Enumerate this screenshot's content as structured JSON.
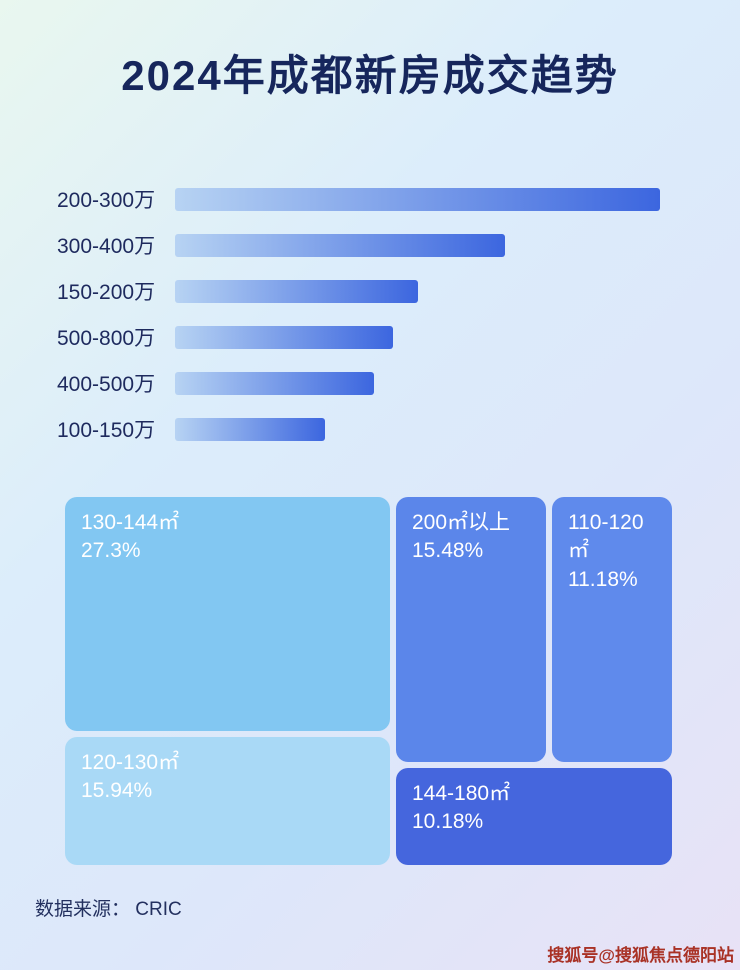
{
  "title": "2024年成都新房成交趋势",
  "source": "数据来源： CRIC",
  "watermark": "搜狐号@搜狐焦点德阳站",
  "colors": {
    "title_text": "#16265c",
    "bar_gradient_start": "#b7d3f3",
    "bar_gradient_end": "#3c66df",
    "treemap_light": "#82c7f2",
    "treemap_lighter": "#a9d9f6",
    "treemap_medium": "#5b86ea",
    "treemap_dark": "#4566dd",
    "watermark_red": "#a93226"
  },
  "chart_data": [
    {
      "type": "bar",
      "orientation": "horizontal",
      "title": "价格段成交趋势（条形图，无数值标注）",
      "categories": [
        "200-300万",
        "300-400万",
        "150-200万",
        "500-800万",
        "400-500万",
        "100-150万"
      ],
      "values": [
        100,
        68,
        50,
        45,
        41,
        31
      ],
      "value_unit": "relative bar length, % of longest bar (estimated from pixels)",
      "xlabel": "",
      "ylabel": "",
      "grid": false,
      "legend": false
    },
    {
      "type": "treemap",
      "title": "户型面积段成交占比",
      "items": [
        {
          "label": "130-144㎡",
          "value": 27.3,
          "display": "27.3%"
        },
        {
          "label": "120-130㎡",
          "value": 15.94,
          "display": "15.94%"
        },
        {
          "label": "200㎡以上",
          "value": 15.48,
          "display": "15.48%"
        },
        {
          "label": "110-120㎡",
          "value": 11.18,
          "display": "11.18%"
        },
        {
          "label": "144-180㎡",
          "value": 10.18,
          "display": "10.18%"
        }
      ],
      "legend": false
    }
  ]
}
